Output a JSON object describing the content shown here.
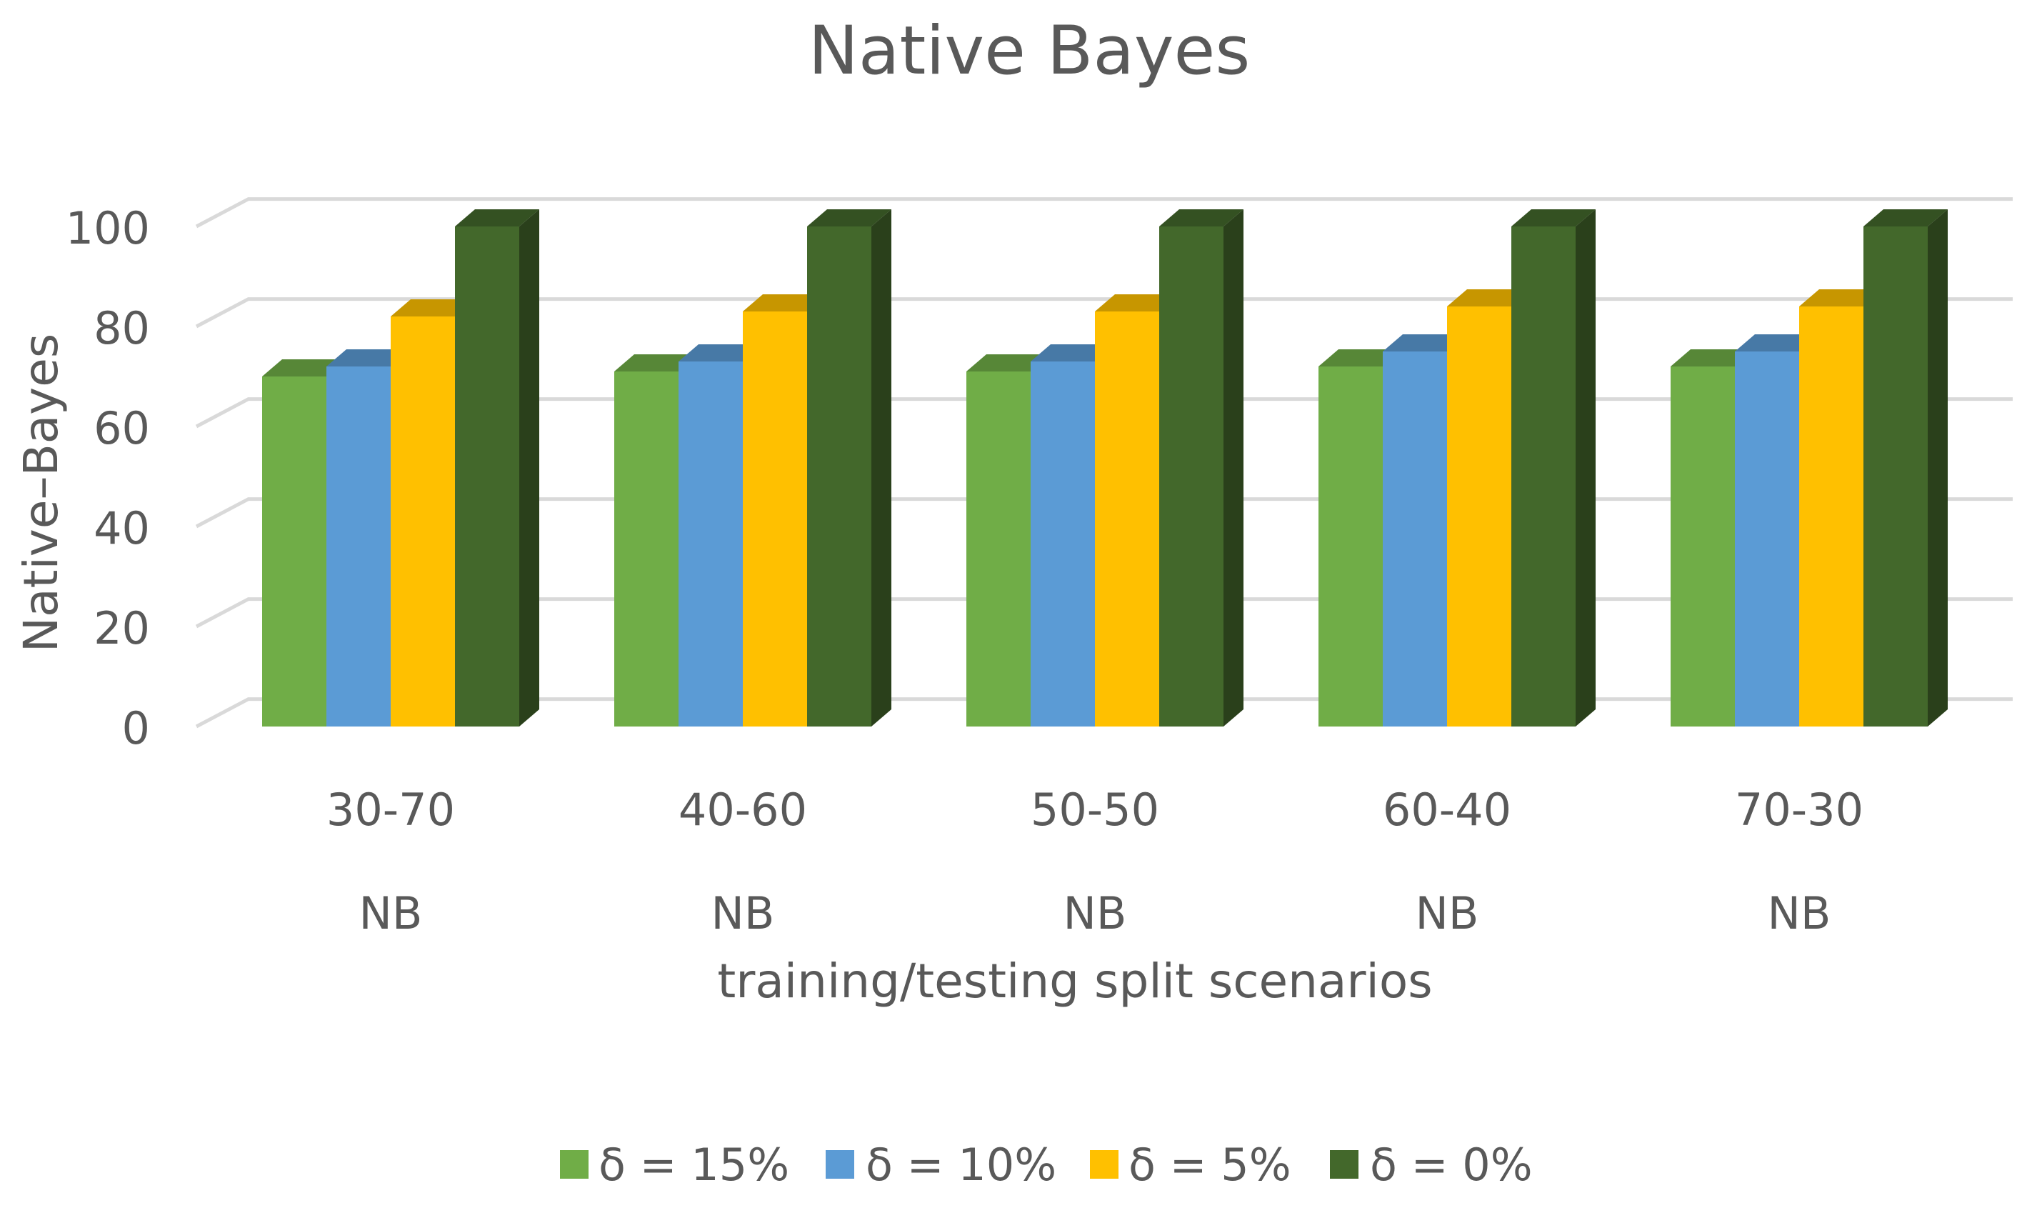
{
  "chart_data": {
    "type": "bar",
    "title": "Native Bayes",
    "xlabel": "training/testing split scenarios",
    "ylabel": "Native–Bayes",
    "ylim": [
      0,
      100
    ],
    "yticks": [
      0,
      20,
      40,
      60,
      80,
      100
    ],
    "categories": [
      "30-70",
      "40-60",
      "50-50",
      "60-40",
      "70-30"
    ],
    "category_sublabels": [
      "NB",
      "NB",
      "NB",
      "NB",
      "NB"
    ],
    "series": [
      {
        "name": "δ = 15%",
        "color": "#70AD47",
        "values": [
          70,
          71,
          71,
          72,
          72
        ]
      },
      {
        "name": "δ = 10%",
        "color": "#5B9BD5",
        "values": [
          72,
          73,
          73,
          75,
          75
        ]
      },
      {
        "name": "δ = 5%",
        "color": "#FFC000",
        "values": [
          82,
          83,
          83,
          84,
          84
        ]
      },
      {
        "name": "δ = 0%",
        "color": "#43682B",
        "values": [
          100,
          100,
          100,
          100,
          100
        ]
      }
    ],
    "grid": true,
    "legend_position": "bottom",
    "style": "3d-clustered-column"
  }
}
